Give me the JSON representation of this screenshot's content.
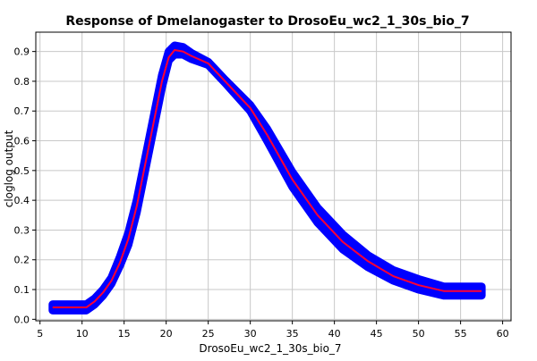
{
  "chart_data": {
    "type": "line",
    "title": "Response of Dmelanogaster to DrosoEu_wc2_1_30s_bio_7",
    "xlabel": "DrosoEu_wc2_1_30s_bio_7",
    "ylabel": "cloglog output",
    "xlim": [
      4.5,
      61
    ],
    "ylim": [
      -0.005,
      0.965
    ],
    "x_ticks": [
      5,
      10,
      15,
      20,
      25,
      30,
      35,
      40,
      45,
      50,
      55,
      60
    ],
    "y_ticks": [
      0.0,
      0.1,
      0.2,
      0.3,
      0.4,
      0.5,
      0.6,
      0.7,
      0.8,
      0.9
    ],
    "grid": true,
    "series": [
      {
        "color": "#ff0033",
        "band_color": "#0000ff",
        "points": [
          {
            "x": 6.5,
            "y": 0.04,
            "lo": 0.03,
            "hi": 0.05
          },
          {
            "x": 10.5,
            "y": 0.04,
            "lo": 0.03,
            "hi": 0.05
          },
          {
            "x": 11.5,
            "y": 0.06,
            "lo": 0.05,
            "hi": 0.07
          },
          {
            "x": 12.5,
            "y": 0.09,
            "lo": 0.08,
            "hi": 0.1
          },
          {
            "x": 13.5,
            "y": 0.13,
            "lo": 0.12,
            "hi": 0.14
          },
          {
            "x": 14.5,
            "y": 0.19,
            "lo": 0.18,
            "hi": 0.21
          },
          {
            "x": 15.5,
            "y": 0.27,
            "lo": 0.25,
            "hi": 0.29
          },
          {
            "x": 16.5,
            "y": 0.38,
            "lo": 0.36,
            "hi": 0.4
          },
          {
            "x": 17.5,
            "y": 0.52,
            "lo": 0.5,
            "hi": 0.54
          },
          {
            "x": 18.5,
            "y": 0.66,
            "lo": 0.64,
            "hi": 0.68
          },
          {
            "x": 19.5,
            "y": 0.8,
            "lo": 0.78,
            "hi": 0.82
          },
          {
            "x": 20.3,
            "y": 0.88,
            "lo": 0.87,
            "hi": 0.9
          },
          {
            "x": 21.0,
            "y": 0.905,
            "lo": 0.89,
            "hi": 0.92
          },
          {
            "x": 22.0,
            "y": 0.9,
            "lo": 0.89,
            "hi": 0.915
          },
          {
            "x": 23.0,
            "y": 0.885,
            "lo": 0.875,
            "hi": 0.895
          },
          {
            "x": 25.0,
            "y": 0.86,
            "lo": 0.855,
            "hi": 0.865
          },
          {
            "x": 27.0,
            "y": 0.8,
            "lo": 0.795,
            "hi": 0.805
          },
          {
            "x": 30.0,
            "y": 0.71,
            "lo": 0.7,
            "hi": 0.72
          },
          {
            "x": 32.0,
            "y": 0.62,
            "lo": 0.6,
            "hi": 0.64
          },
          {
            "x": 35.0,
            "y": 0.47,
            "lo": 0.445,
            "hi": 0.495
          },
          {
            "x": 38.0,
            "y": 0.35,
            "lo": 0.325,
            "hi": 0.375
          },
          {
            "x": 41.0,
            "y": 0.26,
            "lo": 0.235,
            "hi": 0.285
          },
          {
            "x": 44.0,
            "y": 0.195,
            "lo": 0.175,
            "hi": 0.215
          },
          {
            "x": 47.0,
            "y": 0.145,
            "lo": 0.13,
            "hi": 0.165
          },
          {
            "x": 50.0,
            "y": 0.115,
            "lo": 0.1,
            "hi": 0.135
          },
          {
            "x": 53.0,
            "y": 0.095,
            "lo": 0.08,
            "hi": 0.11
          },
          {
            "x": 57.5,
            "y": 0.095,
            "lo": 0.08,
            "hi": 0.11
          }
        ]
      }
    ]
  }
}
